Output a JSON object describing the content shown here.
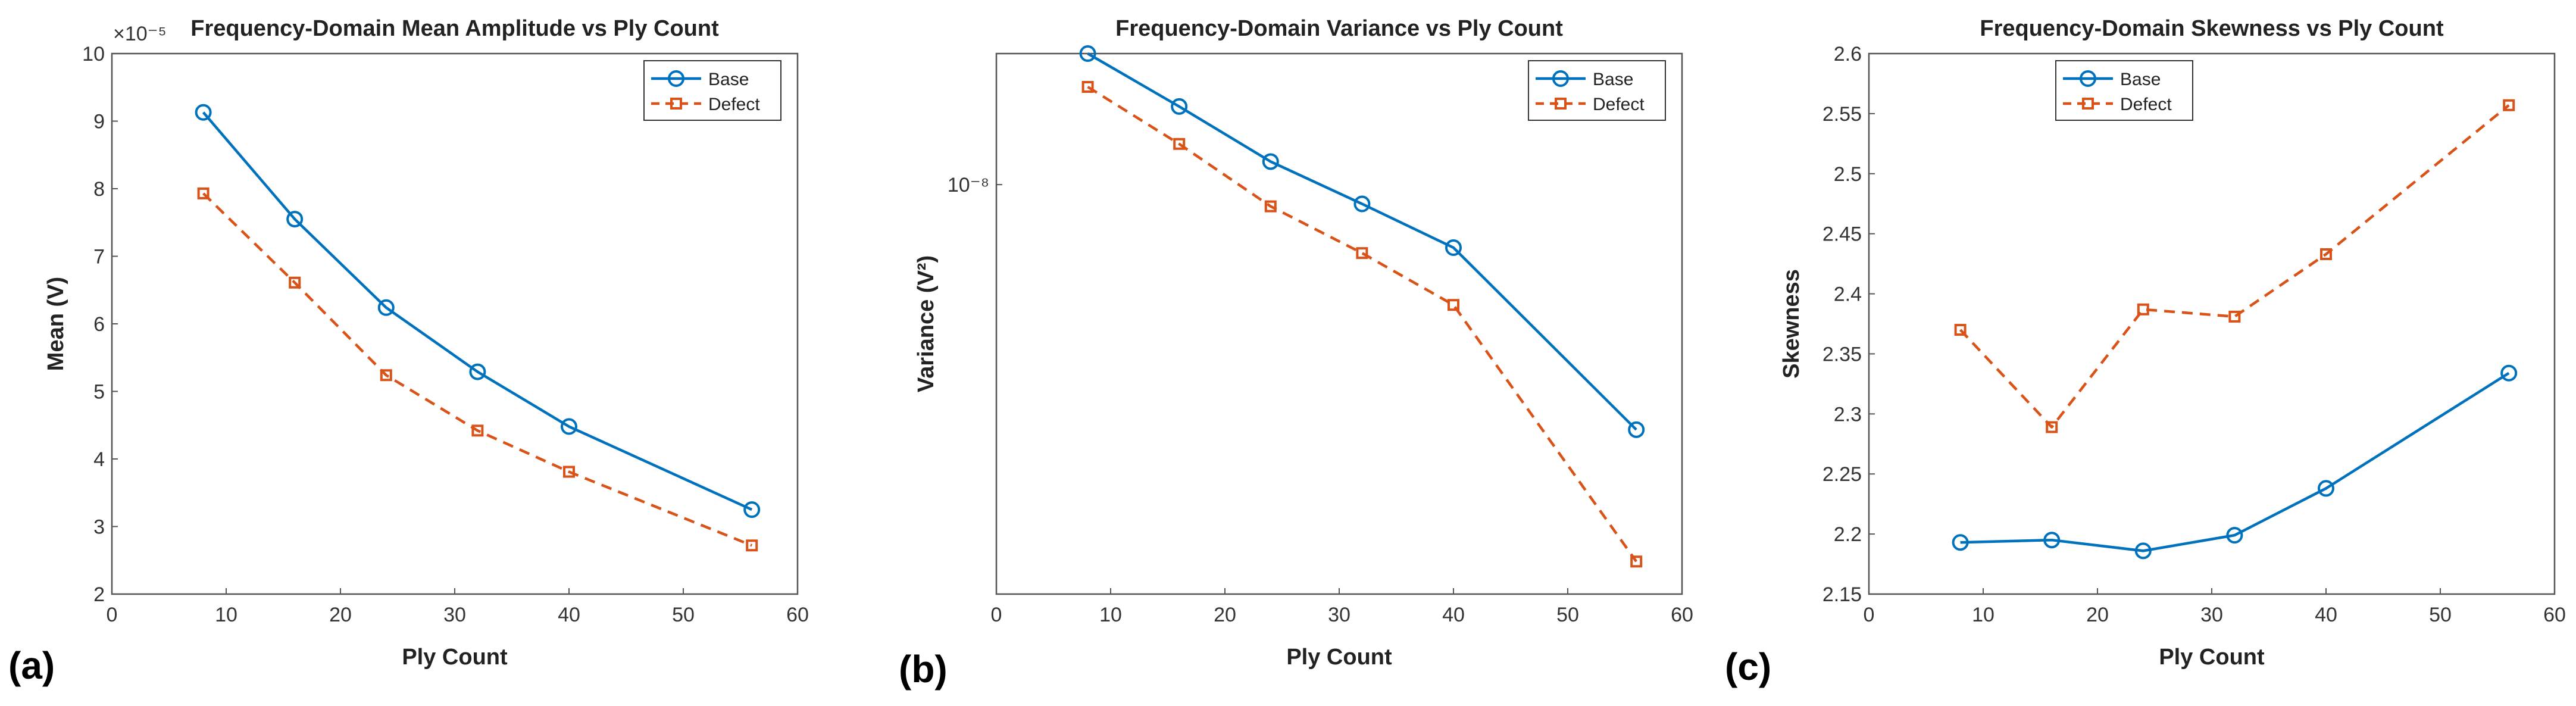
{
  "chart_data": [
    {
      "type": "line",
      "panel_label": "(a)",
      "title": "Frequency-Domain Mean Amplitude vs Ply Count",
      "xlabel": "Ply Count",
      "ylabel": "Mean (V)",
      "y_exponent": "×10⁻⁵",
      "xlim": [
        0,
        60
      ],
      "ylim": [
        2,
        10
      ],
      "yscale": "linear",
      "xticks": [
        0,
        10,
        20,
        30,
        40,
        50,
        60
      ],
      "yticks": [
        2,
        3,
        4,
        5,
        6,
        7,
        8,
        9,
        10
      ],
      "legend": {
        "position": "top-right",
        "entries": [
          "Base",
          "Defect"
        ]
      },
      "grid": true,
      "series": [
        {
          "name": "Base",
          "color": "#0072BD",
          "marker": "circle",
          "line": "solid",
          "x": [
            8,
            16,
            24,
            32,
            40,
            56
          ],
          "values": [
            9.13,
            7.55,
            6.24,
            5.29,
            4.48,
            3.25
          ]
        },
        {
          "name": "Defect",
          "color": "#D95319",
          "marker": "square",
          "line": "dashed",
          "x": [
            8,
            16,
            24,
            32,
            40,
            56
          ],
          "values": [
            7.93,
            6.61,
            5.24,
            4.42,
            3.81,
            2.72
          ]
        }
      ]
    },
    {
      "type": "line",
      "panel_label": "(b)",
      "title": "Frequency-Domain Variance vs Ply Count",
      "xlabel": "Ply Count",
      "ylabel": "Variance (V²)",
      "ytick_text": "10⁻⁸",
      "xlim": [
        0,
        60
      ],
      "ylim": [
        4.2e-09,
        1.32e-08
      ],
      "yscale": "log",
      "xticks": [
        0,
        10,
        20,
        30,
        40,
        50,
        60
      ],
      "yticks": [
        1e-08
      ],
      "legend": {
        "position": "top-right",
        "entries": [
          "Base",
          "Defect"
        ]
      },
      "grid": true,
      "series": [
        {
          "name": "Base",
          "color": "#0072BD",
          "marker": "circle",
          "line": "solid",
          "x": [
            8,
            16,
            24,
            32,
            40,
            56
          ],
          "values": [
            1.32e-08,
            1.18e-08,
            1.05e-08,
            9.6e-09,
            8.75e-09,
            5.95e-09
          ]
        },
        {
          "name": "Defect",
          "color": "#D95319",
          "marker": "square",
          "line": "dashed",
          "x": [
            8,
            16,
            24,
            32,
            40,
            56
          ],
          "values": [
            1.23e-08,
            1.09e-08,
            9.55e-09,
            8.65e-09,
            7.75e-09,
            4.5e-09
          ]
        }
      ]
    },
    {
      "type": "line",
      "panel_label": "(c)",
      "title": "Frequency-Domain Skewness vs Ply Count",
      "xlabel": "Ply Count",
      "ylabel": "Skewness",
      "xlim": [
        0,
        60
      ],
      "ylim": [
        2.15,
        2.6
      ],
      "yscale": "linear",
      "xticks": [
        0,
        10,
        20,
        30,
        40,
        50,
        60
      ],
      "yticks": [
        2.15,
        2.2,
        2.25,
        2.3,
        2.35,
        2.4,
        2.45,
        2.5,
        2.55,
        2.6
      ],
      "legend": {
        "position": "top-left",
        "entries": [
          "Base",
          "Defect"
        ]
      },
      "grid": true,
      "series": [
        {
          "name": "Base",
          "color": "#0072BD",
          "marker": "circle",
          "line": "solid",
          "x": [
            8,
            16,
            24,
            32,
            40,
            56
          ],
          "values": [
            2.193,
            2.195,
            2.186,
            2.199,
            2.238,
            2.334
          ]
        },
        {
          "name": "Defect",
          "color": "#D95319",
          "marker": "square",
          "line": "dashed",
          "x": [
            8,
            16,
            24,
            32,
            40,
            56
          ],
          "values": [
            2.37,
            2.289,
            2.387,
            2.381,
            2.433,
            2.557
          ]
        }
      ]
    }
  ]
}
